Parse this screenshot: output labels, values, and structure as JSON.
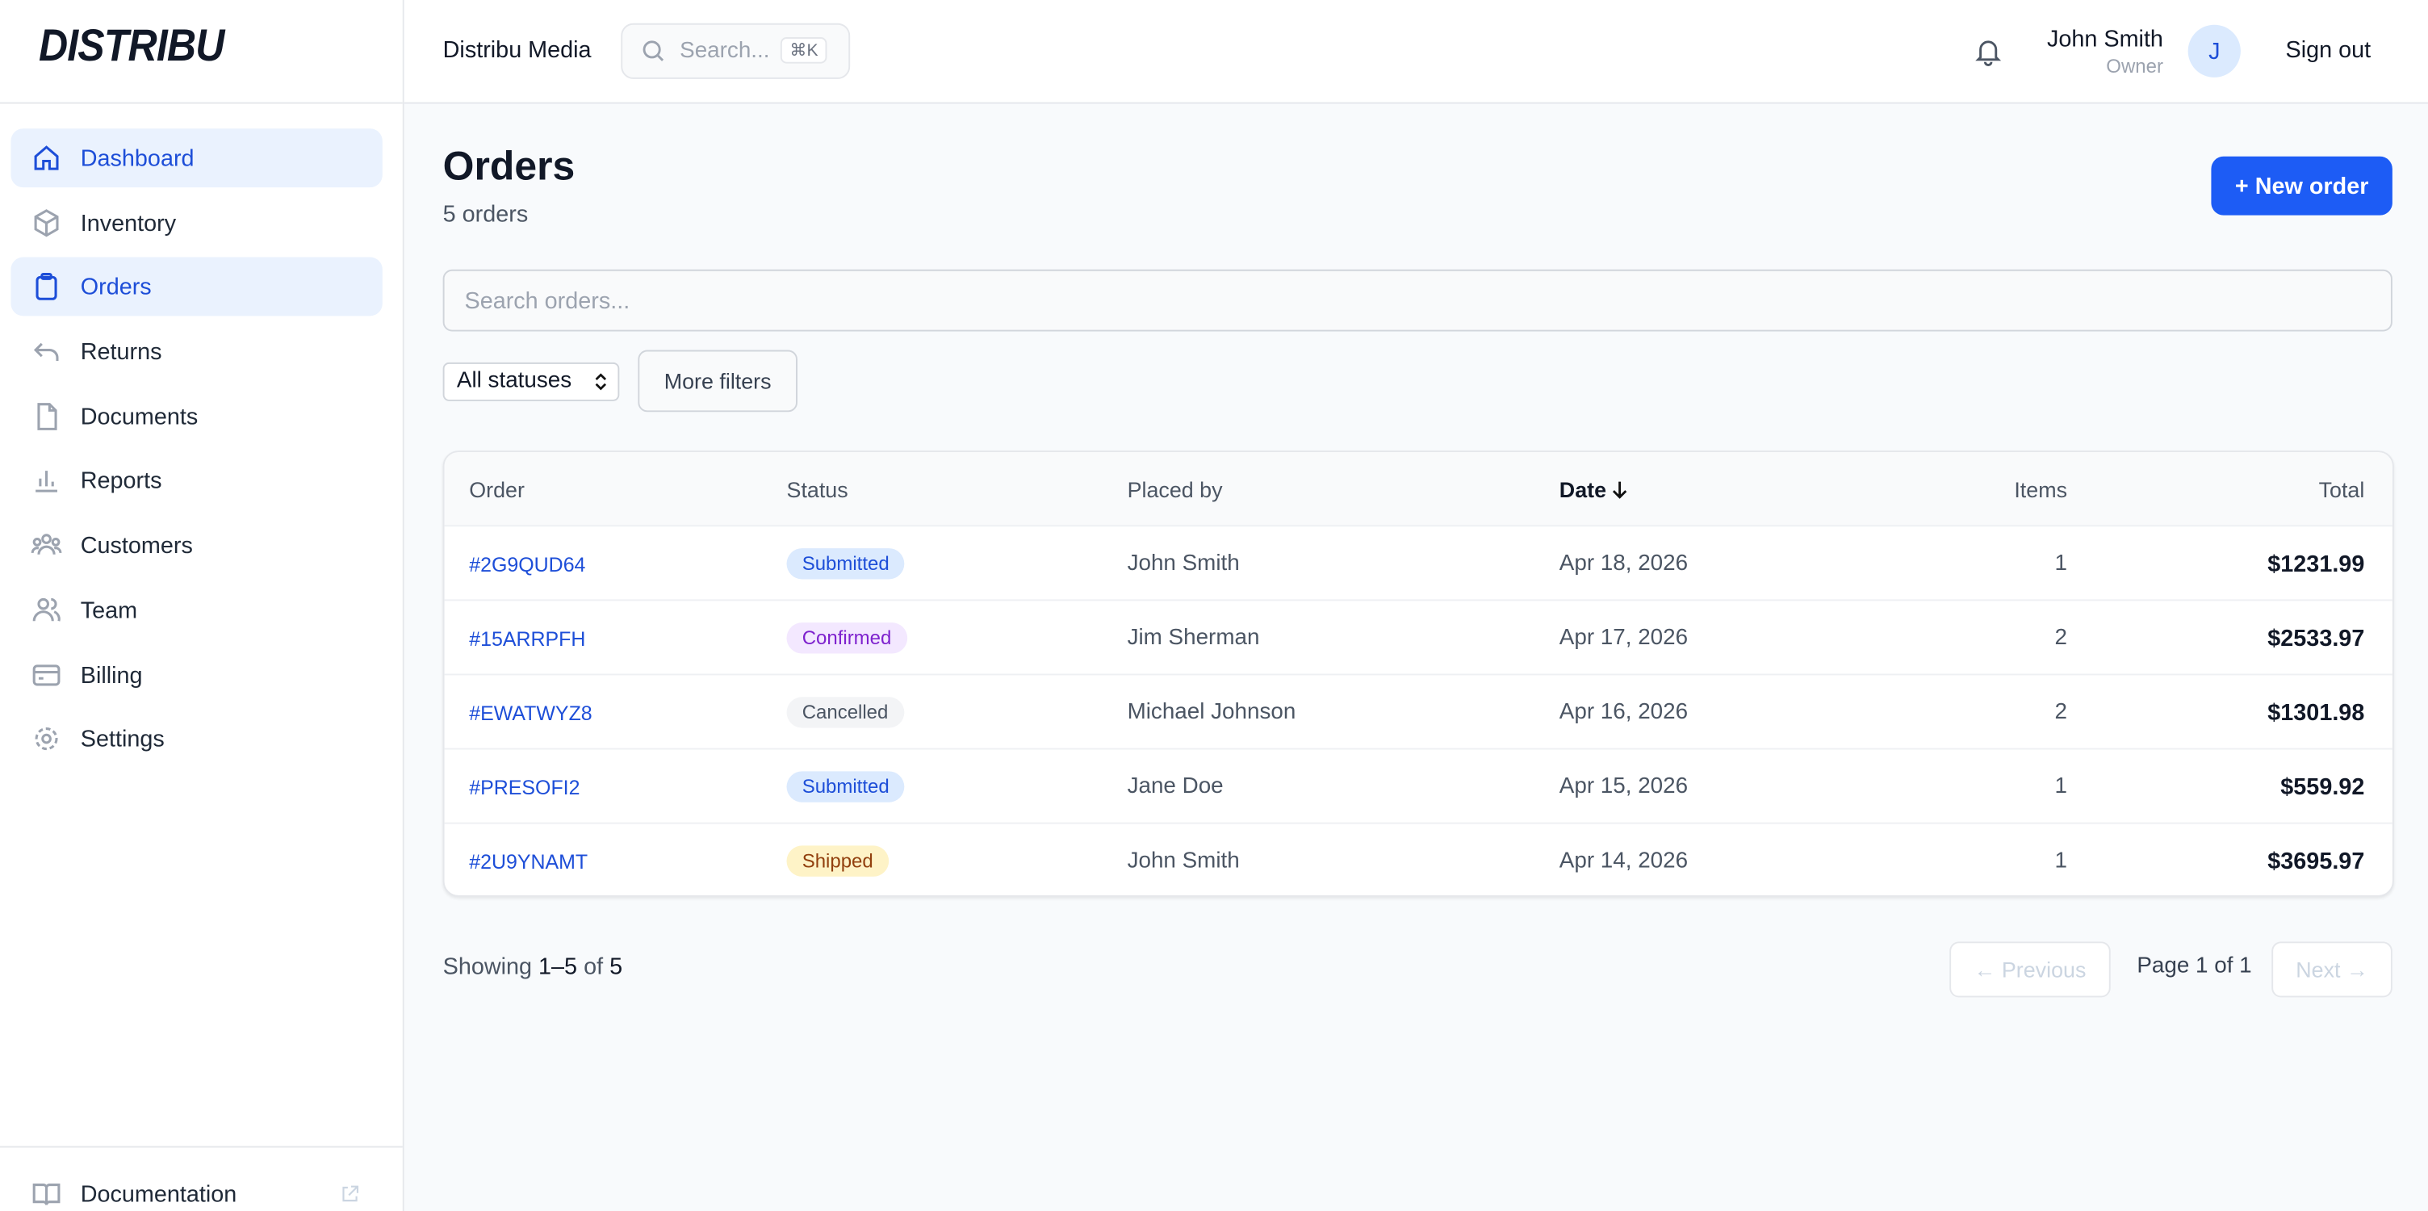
{
  "brand": "DISTRIBU",
  "header": {
    "org": "Distribu Media",
    "search_placeholder": "Search...",
    "shortcut": "⌘K",
    "user_name": "John Smith",
    "user_role": "Owner",
    "avatar": "J",
    "sign_out": "Sign out"
  },
  "nav": [
    "Dashboard",
    "Inventory",
    "Orders",
    "Returns",
    "Documents",
    "Reports",
    "Customers",
    "Team",
    "Billing",
    "Settings"
  ],
  "nav_footer": "Documentation",
  "page": {
    "title": "Orders",
    "subtitle": "5 orders",
    "new_button": "+ New order",
    "search_placeholder": "Search orders...",
    "status_filter": "All statuses",
    "more_filters": "More filters"
  },
  "table": {
    "columns": [
      "Order",
      "Status",
      "Placed by",
      "Date",
      "Items",
      "Total"
    ],
    "rows": [
      [
        "#2G9QUD64",
        "Submitted",
        "John Smith",
        "Apr 18, 2026",
        1,
        "$1231.99"
      ],
      [
        "#15ARRPFH",
        "Confirmed",
        "Jim Sherman",
        "Apr 17, 2026",
        2,
        "$2533.97"
      ],
      [
        "#EWATWYZ8",
        "Cancelled",
        "Michael Johnson",
        "Apr 16, 2026",
        2,
        "$1301.98"
      ],
      [
        "#PRESOFI2",
        "Submitted",
        "Jane Doe",
        "Apr 15, 2026",
        1,
        "$559.92"
      ],
      [
        "#2U9YNAMT",
        "Shipped",
        "John Smith",
        "Apr 14, 2026",
        1,
        "$3695.97"
      ]
    ]
  },
  "pagination": {
    "showing": "Showing",
    "range": "1–5",
    "of": "of",
    "total": "5",
    "previous": "← Previous",
    "page_info": "Page 1 of 1",
    "next": "Next →"
  }
}
